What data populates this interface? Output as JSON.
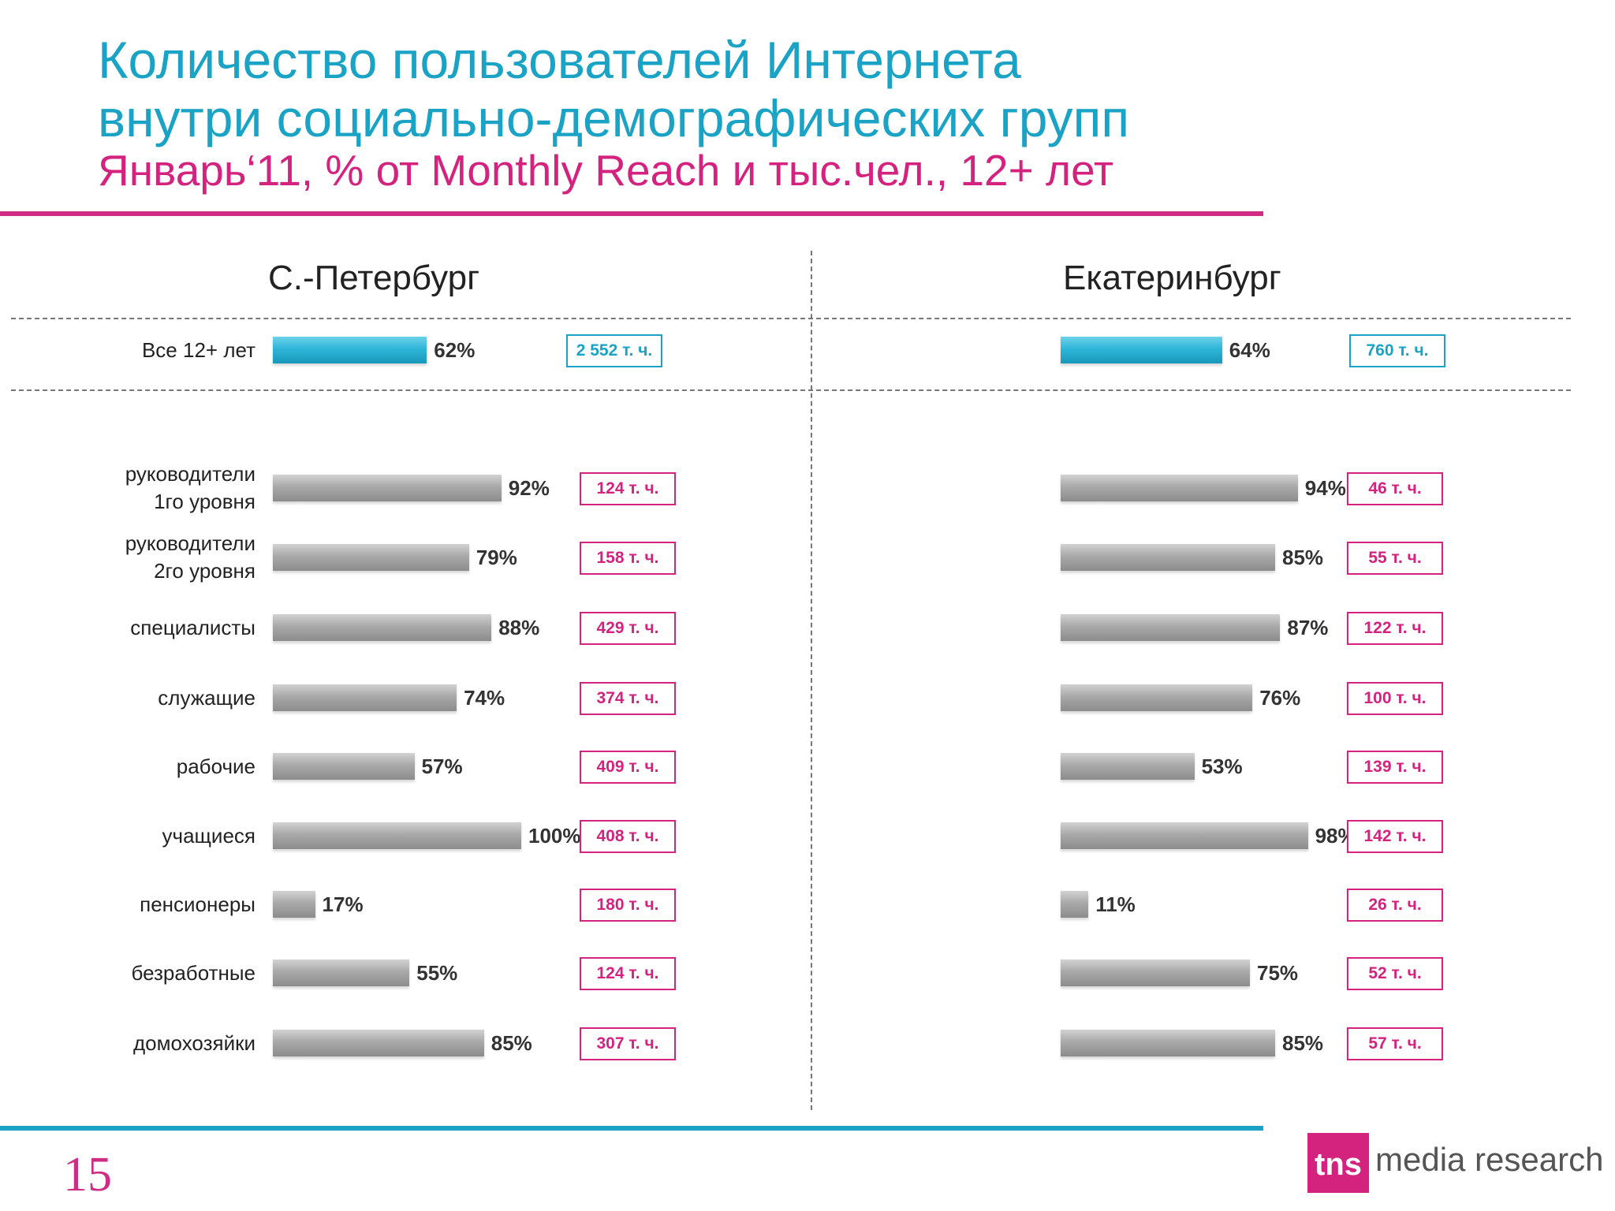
{
  "title_line1": "Количество пользователей Интернета",
  "title_line2": "внутри социально-демографических групп",
  "subtitle": "Январь‘11, % от Monthly Reach и тыс.чел., 12+ лет",
  "page_number": "15",
  "logo": {
    "mark": "tns",
    "text": "media research"
  },
  "colors": {
    "title": "#1aa3c4",
    "accent": "#d4237f",
    "bar": "#a9a9a9",
    "total_bar": "#2eb6d8"
  },
  "chart_data": {
    "type": "bar",
    "orientation": "horizontal",
    "unit": "% от Monthly Reach",
    "categories": [
      "Все 12+ лет",
      "руководители\n1го уровня",
      "руководители\n2го уровня",
      "специалисты",
      "служащие",
      "рабочие",
      "учащиеся",
      "пенсионеры",
      "безработные",
      "домохозяйки"
    ],
    "series": [
      {
        "name": "С.-Петербург",
        "values": [
          62,
          92,
          79,
          88,
          74,
          57,
          100,
          17,
          55,
          85
        ],
        "labels": [
          "62%",
          "92%",
          "79%",
          "88%",
          "74%",
          "57%",
          "100%",
          "17%",
          "55%",
          "85%"
        ],
        "audience": [
          "2 552 т. ч.",
          "124 т. ч.",
          "158 т. ч.",
          "429 т. ч.",
          "374 т. ч.",
          "409 т. ч.",
          "408 т. ч.",
          "180 т. ч.",
          "124 т. ч.",
          "307 т. ч."
        ]
      },
      {
        "name": "Екатеринбург",
        "values": [
          64,
          94,
          85,
          87,
          76,
          53,
          98,
          11,
          75,
          85
        ],
        "labels": [
          "64%",
          "94%",
          "85%",
          "87%",
          "76%",
          "53%",
          "98%",
          "11%",
          "75%",
          "85%"
        ],
        "audience": [
          "760 т. ч.",
          "46 т. ч.",
          "55 т. ч.",
          "122 т. ч.",
          "100 т. ч.",
          "139 т. ч.",
          "142 т. ч.",
          "26 т. ч.",
          "52 т. ч.",
          "57 т. ч."
        ]
      }
    ],
    "xlim": [
      0,
      100
    ],
    "grid": false
  }
}
